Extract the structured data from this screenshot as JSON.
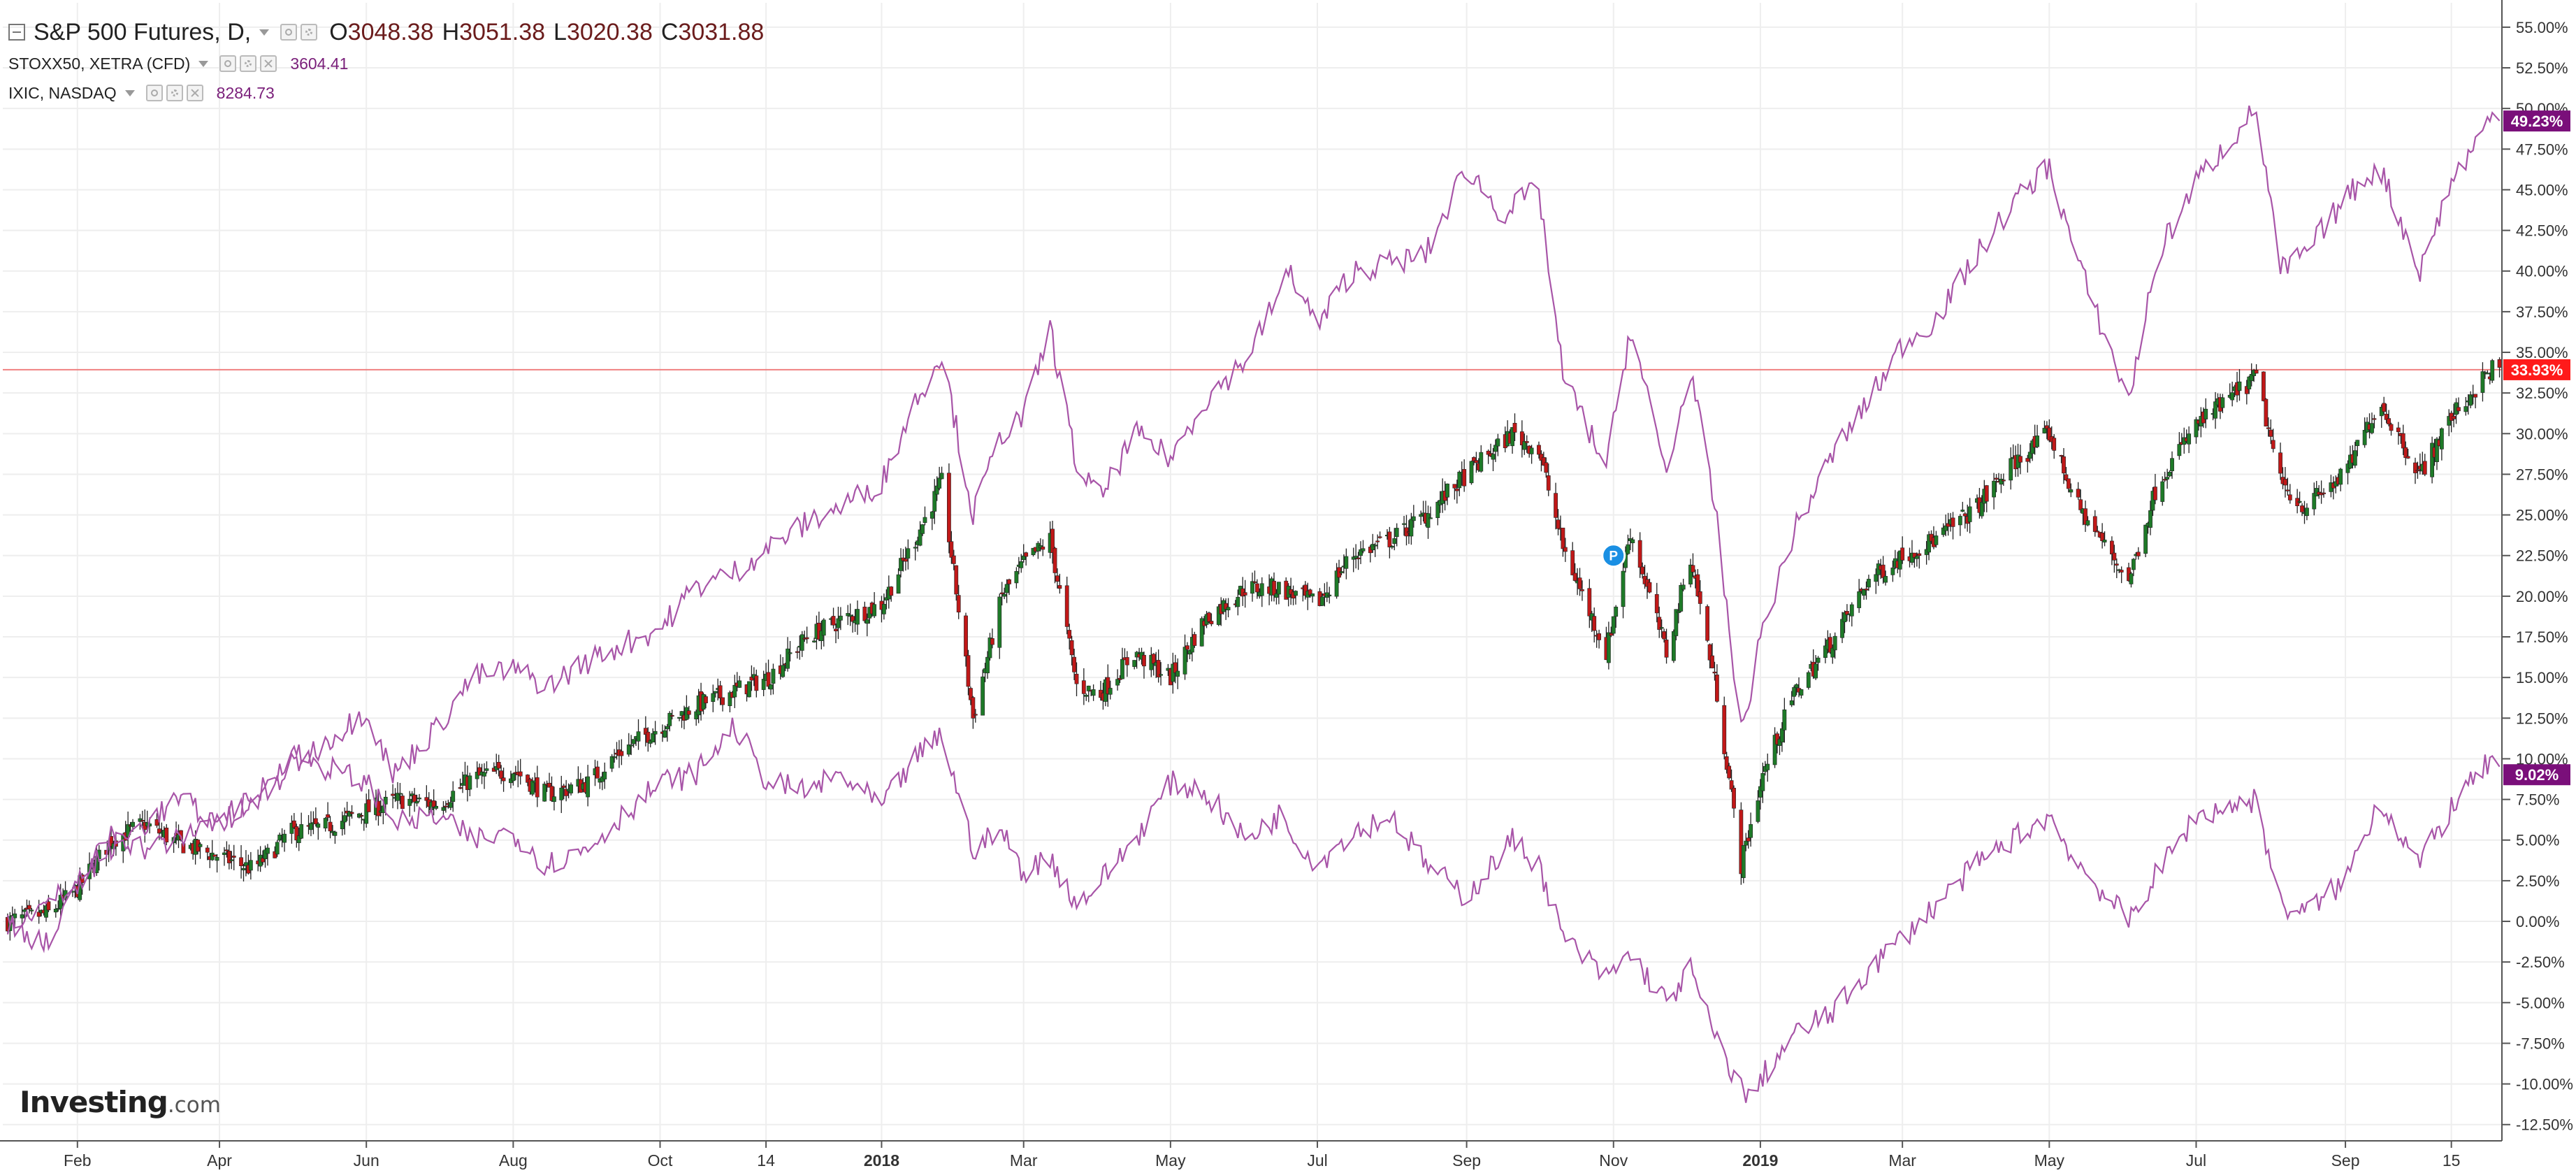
{
  "legend": {
    "main": {
      "title": "S&P 500 Futures, D,",
      "open_key": "O",
      "open": "3048.38",
      "high_key": "H",
      "high": "3051.38",
      "low_key": "L",
      "low": "3020.38",
      "close_key": "C",
      "close": "3031.88"
    },
    "compare": [
      {
        "name": "STOXX50, XETRA (CFD)",
        "value": "3604.41"
      },
      {
        "name": "IXIC, NASDAQ",
        "value": "8284.73"
      }
    ]
  },
  "logo": {
    "brand": "Investing",
    "suffix": ".com"
  },
  "colors": {
    "up": "#1e7a28",
    "down": "#c01818",
    "compare_line": "#a855a8",
    "badge_main": "#ff1a1a",
    "badge_compare": "#7a0f7a",
    "grid": "#eeeeee",
    "hline": "#f08080"
  },
  "chart_data": {
    "type": "line",
    "title": "S&P 500 Futures, D,",
    "y_unit": "percent change",
    "ylim": [
      -13.5,
      56.5
    ],
    "y_ticks": [
      "55.00%",
      "52.50%",
      "50.00%",
      "47.50%",
      "45.00%",
      "42.50%",
      "40.00%",
      "37.50%",
      "35.00%",
      "32.50%",
      "30.00%",
      "27.50%",
      "25.00%",
      "22.50%",
      "20.00%",
      "17.50%",
      "15.00%",
      "12.50%",
      "10.00%",
      "7.50%",
      "5.00%",
      "2.50%",
      "0.00%",
      "-2.50%",
      "-5.00%",
      "-7.50%",
      "-10.00%",
      "-12.50%"
    ],
    "x_ticks": [
      {
        "label": "Feb",
        "date": "2017-02-01"
      },
      {
        "label": "Apr",
        "date": "2017-04-01"
      },
      {
        "label": "Jun",
        "date": "2017-06-01"
      },
      {
        "label": "Aug",
        "date": "2017-08-01"
      },
      {
        "label": "Oct",
        "date": "2017-10-01"
      },
      {
        "label": "14",
        "date": "2017-11-14"
      },
      {
        "label": "2018",
        "date": "2018-01-01"
      },
      {
        "label": "Mar",
        "date": "2018-03-01"
      },
      {
        "label": "May",
        "date": "2018-05-01"
      },
      {
        "label": "Jul",
        "date": "2018-07-01"
      },
      {
        "label": "Sep",
        "date": "2018-09-01"
      },
      {
        "label": "Nov",
        "date": "2018-11-01"
      },
      {
        "label": "2019",
        "date": "2019-01-01"
      },
      {
        "label": "Mar",
        "date": "2019-03-01"
      },
      {
        "label": "May",
        "date": "2019-05-01"
      },
      {
        "label": "Jul",
        "date": "2019-07-01"
      },
      {
        "label": "Sep",
        "date": "2019-09-01"
      },
      {
        "label": "15",
        "date": "2019-10-15"
      }
    ],
    "xlim": [
      "2017-01-01",
      "2019-11-05"
    ],
    "grid": true,
    "last_value_labels": [
      {
        "series": "S&P 500 Futures",
        "text": "33.93%",
        "value": 33.93
      },
      {
        "series": "IXIC, NASDAQ",
        "text": "49.23%",
        "value": 49.23
      },
      {
        "series": "STOXX50, XETRA (CFD)",
        "text": "9.02%",
        "value": 9.02
      }
    ],
    "horizontal_line_value": 33.93,
    "marker": {
      "label": "P",
      "date": "2018-11-01",
      "value": 22.5
    },
    "series": [
      {
        "name": "S&P 500 Futures",
        "style": "candlestick",
        "points": [
          [
            "2017-01-03",
            0.0
          ],
          [
            "2017-01-20",
            0.5
          ],
          [
            "2017-02-01",
            2.0
          ],
          [
            "2017-02-15",
            5.0
          ],
          [
            "2017-03-01",
            6.0
          ],
          [
            "2017-03-15",
            4.8
          ],
          [
            "2017-04-01",
            4.0
          ],
          [
            "2017-04-15",
            3.2
          ],
          [
            "2017-05-01",
            5.5
          ],
          [
            "2017-05-15",
            5.8
          ],
          [
            "2017-06-01",
            6.8
          ],
          [
            "2017-06-15",
            7.5
          ],
          [
            "2017-07-01",
            7.2
          ],
          [
            "2017-07-15",
            8.8
          ],
          [
            "2017-08-01",
            9.3
          ],
          [
            "2017-08-15",
            7.8
          ],
          [
            "2017-09-01",
            8.5
          ],
          [
            "2017-09-15",
            10.5
          ],
          [
            "2017-10-01",
            12.0
          ],
          [
            "2017-10-15",
            13.2
          ],
          [
            "2017-11-01",
            14.2
          ],
          [
            "2017-11-15",
            15.0
          ],
          [
            "2017-12-01",
            17.5
          ],
          [
            "2017-12-15",
            18.5
          ],
          [
            "2018-01-01",
            19.5
          ],
          [
            "2018-01-15",
            23.5
          ],
          [
            "2018-01-26",
            27.0
          ],
          [
            "2018-02-08",
            12.5
          ],
          [
            "2018-02-20",
            20.0
          ],
          [
            "2018-03-01",
            22.0
          ],
          [
            "2018-03-12",
            23.5
          ],
          [
            "2018-03-23",
            14.5
          ],
          [
            "2018-04-02",
            14.0
          ],
          [
            "2018-04-16",
            16.5
          ],
          [
            "2018-05-01",
            15.0
          ],
          [
            "2018-05-15",
            18.5
          ],
          [
            "2018-06-01",
            20.5
          ],
          [
            "2018-06-15",
            20.5
          ],
          [
            "2018-07-01",
            19.5
          ],
          [
            "2018-07-15",
            22.5
          ],
          [
            "2018-08-01",
            23.5
          ],
          [
            "2018-08-15",
            25.0
          ],
          [
            "2018-09-01",
            27.5
          ],
          [
            "2018-09-20",
            30.0
          ],
          [
            "2018-10-01",
            29.0
          ],
          [
            "2018-10-11",
            23.0
          ],
          [
            "2018-10-29",
            16.5
          ],
          [
            "2018-11-08",
            24.0
          ],
          [
            "2018-11-23",
            16.5
          ],
          [
            "2018-12-03",
            22.5
          ],
          [
            "2018-12-14",
            14.0
          ],
          [
            "2018-12-24",
            3.5
          ],
          [
            "2019-01-02",
            9.0
          ],
          [
            "2019-01-15",
            14.0
          ],
          [
            "2019-02-01",
            17.5
          ],
          [
            "2019-02-15",
            21.0
          ],
          [
            "2019-03-01",
            22.5
          ],
          [
            "2019-03-15",
            23.5
          ],
          [
            "2019-04-01",
            25.5
          ],
          [
            "2019-04-15",
            28.0
          ],
          [
            "2019-05-01",
            30.0
          ],
          [
            "2019-05-13",
            25.5
          ],
          [
            "2019-06-03",
            21.0
          ],
          [
            "2019-06-15",
            27.0
          ],
          [
            "2019-07-01",
            30.5
          ],
          [
            "2019-07-26",
            33.5
          ],
          [
            "2019-08-05",
            27.0
          ],
          [
            "2019-08-15",
            25.5
          ],
          [
            "2019-09-01",
            27.5
          ],
          [
            "2019-09-15",
            32.0
          ],
          [
            "2019-10-02",
            27.5
          ],
          [
            "2019-10-15",
            31.0
          ],
          [
            "2019-11-01",
            34.0
          ],
          [
            "2019-11-04",
            33.93
          ]
        ]
      },
      {
        "name": "IXIC, NASDAQ",
        "style": "line",
        "points": [
          [
            "2017-01-03",
            0.0
          ],
          [
            "2017-01-20",
            -1.5
          ],
          [
            "2017-02-01",
            2.0
          ],
          [
            "2017-02-15",
            5.5
          ],
          [
            "2017-03-01",
            4.5
          ],
          [
            "2017-03-15",
            5.0
          ],
          [
            "2017-04-01",
            6.5
          ],
          [
            "2017-04-15",
            7.0
          ],
          [
            "2017-05-01",
            9.5
          ],
          [
            "2017-05-15",
            11.0
          ],
          [
            "2017-06-01",
            13.0
          ],
          [
            "2017-06-12",
            9.0
          ],
          [
            "2017-07-01",
            12.0
          ],
          [
            "2017-07-15",
            15.0
          ],
          [
            "2017-08-01",
            15.5
          ],
          [
            "2017-08-15",
            14.5
          ],
          [
            "2017-09-01",
            16.0
          ],
          [
            "2017-09-15",
            17.0
          ],
          [
            "2017-10-01",
            18.0
          ],
          [
            "2017-10-15",
            20.5
          ],
          [
            "2017-11-01",
            21.5
          ],
          [
            "2017-11-15",
            23.0
          ],
          [
            "2017-12-01",
            24.5
          ],
          [
            "2017-12-15",
            25.5
          ],
          [
            "2018-01-01",
            27.0
          ],
          [
            "2018-01-15",
            32.0
          ],
          [
            "2018-01-26",
            35.0
          ],
          [
            "2018-02-08",
            25.0
          ],
          [
            "2018-02-20",
            30.0
          ],
          [
            "2018-03-01",
            31.0
          ],
          [
            "2018-03-12",
            36.5
          ],
          [
            "2018-03-23",
            28.0
          ],
          [
            "2018-04-02",
            26.0
          ],
          [
            "2018-04-16",
            30.0
          ],
          [
            "2018-05-01",
            28.5
          ],
          [
            "2018-05-15",
            32.0
          ],
          [
            "2018-06-01",
            34.5
          ],
          [
            "2018-06-20",
            40.0
          ],
          [
            "2018-07-01",
            36.5
          ],
          [
            "2018-07-15",
            40.0
          ],
          [
            "2018-08-01",
            40.5
          ],
          [
            "2018-08-15",
            41.0
          ],
          [
            "2018-09-01",
            46.5
          ],
          [
            "2018-09-15",
            43.5
          ],
          [
            "2018-10-01",
            45.0
          ],
          [
            "2018-10-11",
            33.5
          ],
          [
            "2018-10-29",
            28.0
          ],
          [
            "2018-11-08",
            36.5
          ],
          [
            "2018-11-23",
            27.5
          ],
          [
            "2018-12-03",
            34.0
          ],
          [
            "2018-12-14",
            24.5
          ],
          [
            "2018-12-24",
            11.5
          ],
          [
            "2019-01-02",
            18.0
          ],
          [
            "2019-01-15",
            24.0
          ],
          [
            "2019-02-01",
            29.0
          ],
          [
            "2019-02-15",
            32.0
          ],
          [
            "2019-03-01",
            35.5
          ],
          [
            "2019-03-15",
            37.0
          ],
          [
            "2019-04-01",
            41.0
          ],
          [
            "2019-04-15",
            44.0
          ],
          [
            "2019-05-01",
            46.5
          ],
          [
            "2019-05-13",
            40.5
          ],
          [
            "2019-06-03",
            32.0
          ],
          [
            "2019-06-15",
            41.0
          ],
          [
            "2019-07-01",
            45.5
          ],
          [
            "2019-07-26",
            50.0
          ],
          [
            "2019-08-05",
            40.0
          ],
          [
            "2019-08-15",
            41.0
          ],
          [
            "2019-09-01",
            44.5
          ],
          [
            "2019-09-15",
            46.5
          ],
          [
            "2019-10-02",
            40.0
          ],
          [
            "2019-10-15",
            45.5
          ],
          [
            "2019-11-01",
            49.5
          ],
          [
            "2019-11-04",
            49.23
          ]
        ]
      },
      {
        "name": "STOXX50, XETRA (CFD)",
        "style": "line",
        "points": [
          [
            "2017-01-03",
            0.0
          ],
          [
            "2017-01-20",
            1.0
          ],
          [
            "2017-02-01",
            2.5
          ],
          [
            "2017-02-15",
            4.5
          ],
          [
            "2017-03-01",
            6.0
          ],
          [
            "2017-03-15",
            7.5
          ],
          [
            "2017-04-01",
            6.0
          ],
          [
            "2017-04-15",
            7.5
          ],
          [
            "2017-05-01",
            10.5
          ],
          [
            "2017-05-15",
            9.5
          ],
          [
            "2017-06-01",
            8.5
          ],
          [
            "2017-06-15",
            6.0
          ],
          [
            "2017-07-01",
            6.5
          ],
          [
            "2017-07-15",
            5.0
          ],
          [
            "2017-08-01",
            5.5
          ],
          [
            "2017-08-15",
            3.5
          ],
          [
            "2017-09-01",
            4.5
          ],
          [
            "2017-09-15",
            6.5
          ],
          [
            "2017-10-01",
            8.5
          ],
          [
            "2017-10-15",
            9.0
          ],
          [
            "2017-11-01",
            12.0
          ],
          [
            "2017-11-15",
            8.5
          ],
          [
            "2017-12-01",
            8.0
          ],
          [
            "2017-12-15",
            9.0
          ],
          [
            "2018-01-01",
            7.0
          ],
          [
            "2018-01-15",
            10.0
          ],
          [
            "2018-01-26",
            11.5
          ],
          [
            "2018-02-08",
            4.5
          ],
          [
            "2018-02-20",
            5.5
          ],
          [
            "2018-03-01",
            3.0
          ],
          [
            "2018-03-12",
            4.0
          ],
          [
            "2018-03-23",
            1.0
          ],
          [
            "2018-04-02",
            2.5
          ],
          [
            "2018-04-16",
            5.0
          ],
          [
            "2018-05-01",
            8.5
          ],
          [
            "2018-05-15",
            8.0
          ],
          [
            "2018-06-01",
            5.0
          ],
          [
            "2018-06-15",
            6.5
          ],
          [
            "2018-07-01",
            3.5
          ],
          [
            "2018-07-15",
            5.5
          ],
          [
            "2018-08-01",
            6.5
          ],
          [
            "2018-08-15",
            3.5
          ],
          [
            "2018-09-01",
            1.5
          ],
          [
            "2018-09-20",
            5.0
          ],
          [
            "2018-10-01",
            3.5
          ],
          [
            "2018-10-11",
            -1.0
          ],
          [
            "2018-10-29",
            -3.5
          ],
          [
            "2018-11-08",
            -2.0
          ],
          [
            "2018-11-23",
            -5.0
          ],
          [
            "2018-12-03",
            -3.0
          ],
          [
            "2018-12-14",
            -7.5
          ],
          [
            "2018-12-27",
            -11.0
          ],
          [
            "2019-01-02",
            -9.5
          ],
          [
            "2019-01-15",
            -7.0
          ],
          [
            "2019-02-01",
            -5.5
          ],
          [
            "2019-02-15",
            -3.0
          ],
          [
            "2019-03-01",
            -1.0
          ],
          [
            "2019-03-15",
            1.0
          ],
          [
            "2019-04-01",
            3.5
          ],
          [
            "2019-04-15",
            5.0
          ],
          [
            "2019-05-01",
            6.5
          ],
          [
            "2019-05-13",
            3.5
          ],
          [
            "2019-06-03",
            0.0
          ],
          [
            "2019-06-15",
            3.0
          ],
          [
            "2019-07-01",
            6.5
          ],
          [
            "2019-07-26",
            7.5
          ],
          [
            "2019-08-05",
            1.0
          ],
          [
            "2019-08-15",
            0.5
          ],
          [
            "2019-09-01",
            2.5
          ],
          [
            "2019-09-15",
            7.5
          ],
          [
            "2019-10-02",
            3.5
          ],
          [
            "2019-10-15",
            7.0
          ],
          [
            "2019-11-01",
            10.0
          ],
          [
            "2019-11-04",
            9.02
          ]
        ]
      }
    ]
  }
}
